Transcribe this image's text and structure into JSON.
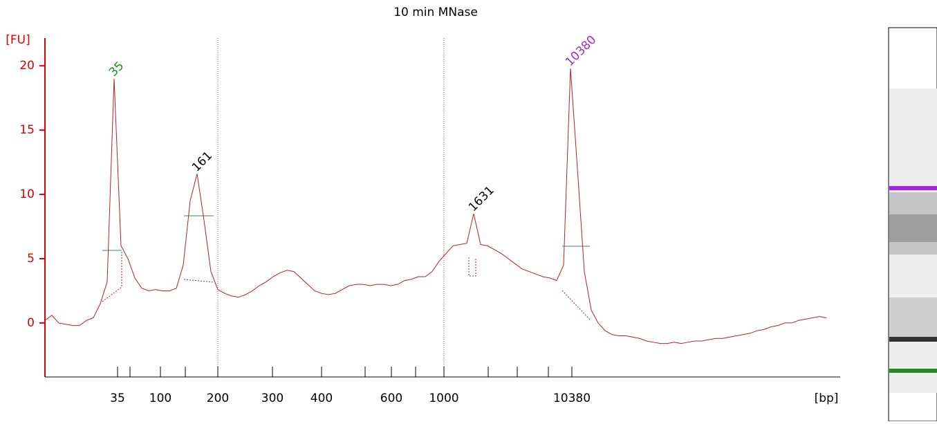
{
  "chart_data": {
    "type": "line",
    "title": "10 min MNase",
    "y_label": "[FU]",
    "x_label": "[bp]",
    "color": "#b22222",
    "values": [
      0.2,
      0.6,
      0,
      -0.1,
      -0.2,
      -0.2,
      0.2,
      0.4,
      1.5,
      3.2,
      19,
      6,
      5,
      3.5,
      2.7,
      2.5,
      2.6,
      2.5,
      2.5,
      2.7,
      4.5,
      9.5,
      11.6,
      8,
      4,
      2.6,
      2.3,
      2.1,
      2,
      2.2,
      2.5,
      2.9,
      3.2,
      3.6,
      3.9,
      4.1,
      4,
      3.5,
      3,
      2.5,
      2.3,
      2.2,
      2.3,
      2.6,
      2.9,
      3,
      3,
      2.9,
      3,
      3,
      2.9,
      3,
      3.3,
      3.4,
      3.6,
      3.6,
      4,
      4.8,
      5.4,
      6,
      6.1,
      6.2,
      8.5,
      6.1,
      6,
      5.7,
      5.4,
      5,
      4.6,
      4.2,
      4,
      3.8,
      3.6,
      3.5,
      3.3,
      4.5,
      19.8,
      12,
      4,
      1,
      0,
      -0.6,
      -0.9,
      -1,
      -1,
      -1.1,
      -1.2,
      -1.4,
      -1.5,
      -1.6,
      -1.6,
      -1.5,
      -1.6,
      -1.5,
      -1.4,
      -1.4,
      -1.3,
      -1.2,
      -1.2,
      -1.1,
      -1,
      -0.9,
      -0.8,
      -0.6,
      -0.5,
      -0.3,
      -0.2,
      0,
      0,
      0.2,
      0.3,
      0.4,
      0.5,
      0.4
    ],
    "ylim": [
      -4.2,
      22
    ],
    "yticks": [
      0,
      5,
      10,
      15,
      20
    ],
    "xticks": [
      35,
      100,
      200,
      300,
      400,
      600,
      1000,
      10380
    ],
    "peak_labels": [
      {
        "text": "35",
        "color": "#228b22"
      },
      {
        "text": "161",
        "color": "#000000"
      },
      {
        "text": "1631",
        "color": "#000000"
      },
      {
        "text": "10380",
        "color": "#9932cc"
      }
    ]
  }
}
